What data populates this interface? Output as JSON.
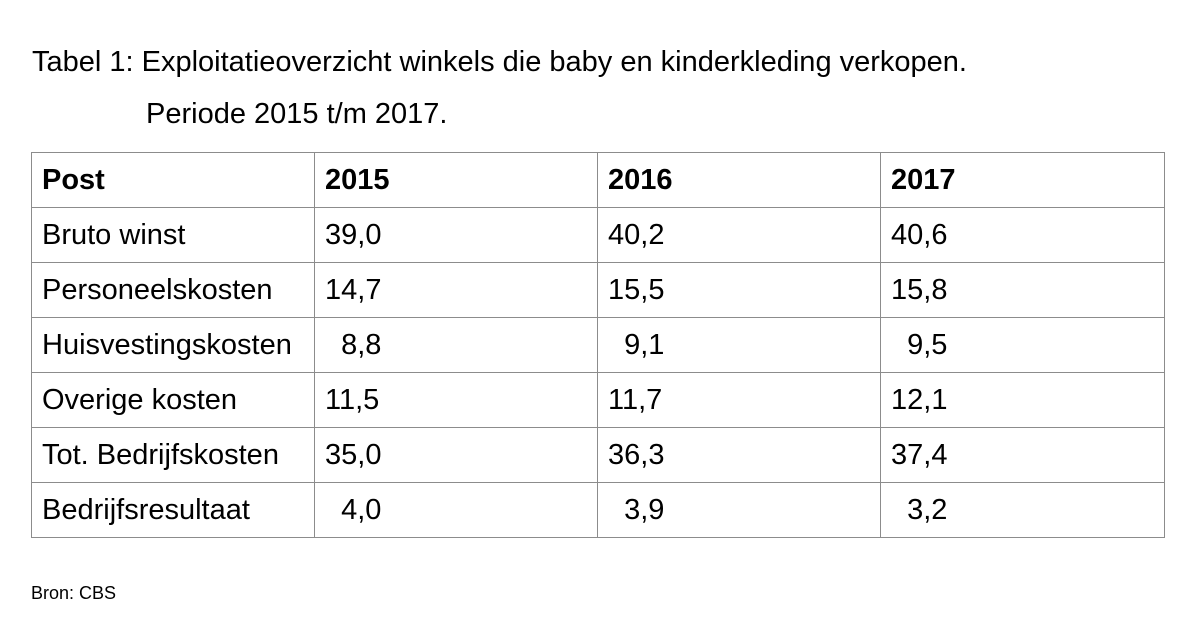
{
  "title": {
    "line1": "Tabel 1: Exploitatieoverzicht winkels die baby en kinderkleding verkopen.",
    "line2": "Periode 2015 t/m 2017."
  },
  "table": {
    "headers": [
      "Post",
      "2015",
      "2016",
      "2017"
    ],
    "rows": [
      [
        "Bruto winst",
        "39,0",
        "40,2",
        "40,6"
      ],
      [
        "Personeelskosten",
        "14,7",
        "15,5",
        "15,8"
      ],
      [
        "Huisvestingskosten",
        "  8,8",
        "  9,1",
        "  9,5"
      ],
      [
        "Overige kosten",
        "11,5",
        "11,7",
        "12,1"
      ],
      [
        "Tot. Bedrijfskosten",
        "35,0",
        "36,3",
        "37,4"
      ],
      [
        "Bedrijfsresultaat",
        "  4,0",
        "  3,9",
        "  3,2"
      ]
    ]
  },
  "source": "Bron: CBS"
}
